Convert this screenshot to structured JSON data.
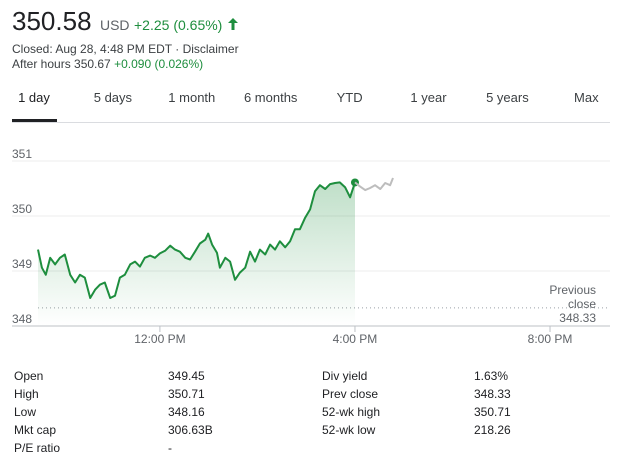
{
  "header": {
    "price": "350.58",
    "currency": "USD",
    "change": "+2.25 (0.65%)",
    "status": "Closed: Aug 28, 4:48 PM EDT",
    "separator": "·",
    "disclaimer": "Disclaimer",
    "after_hours": "After hours 350.67",
    "after_hours_change": "+0.090 (0.026%)"
  },
  "tabs": [
    "1 day",
    "5 days",
    "1 month",
    "6 months",
    "YTD",
    "1 year",
    "5 years",
    "Max"
  ],
  "selected_tab": 0,
  "chart_data": {
    "type": "line",
    "xlim": [
      9.5,
      21.23
    ],
    "ylim": [
      348,
      351.2
    ],
    "xticks": [
      {
        "value": 12,
        "label": "12:00 PM"
      },
      {
        "value": 16,
        "label": "4:00 PM"
      },
      {
        "value": 20,
        "label": "8:00 PM"
      }
    ],
    "yticks": [
      348,
      349,
      350,
      351
    ],
    "grid": true,
    "series": [
      {
        "color": "#1e8e3e",
        "area": true,
        "end_marker": true,
        "x": [
          9.5,
          9.58,
          9.66,
          9.75,
          9.85,
          9.95,
          10.05,
          10.16,
          10.26,
          10.36,
          10.46,
          10.57,
          10.67,
          10.77,
          10.87,
          10.98,
          11.08,
          11.18,
          11.28,
          11.39,
          11.49,
          11.59,
          11.69,
          11.8,
          11.9,
          12.0,
          12.11,
          12.21,
          12.31,
          12.41,
          12.52,
          12.62,
          12.72,
          12.82,
          12.93,
          12.99,
          13.07,
          13.17,
          13.23,
          13.34,
          13.44,
          13.54,
          13.64,
          13.75,
          13.85,
          13.95,
          14.05,
          14.16,
          14.26,
          14.36,
          14.46,
          14.57,
          14.67,
          14.77,
          14.87,
          14.98,
          15.08,
          15.18,
          15.28,
          15.39,
          15.49,
          15.59,
          15.69,
          15.8,
          15.9,
          16.0
        ],
        "values": [
          349.39,
          349.06,
          348.93,
          349.24,
          349.12,
          349.24,
          349.3,
          348.93,
          348.79,
          348.93,
          348.88,
          348.51,
          348.66,
          348.75,
          348.79,
          348.51,
          348.55,
          348.88,
          348.93,
          349.12,
          349.17,
          349.08,
          349.24,
          349.28,
          349.24,
          349.32,
          349.37,
          349.46,
          349.39,
          349.35,
          349.24,
          349.21,
          349.35,
          349.5,
          349.57,
          349.68,
          349.48,
          349.33,
          349.06,
          349.24,
          349.17,
          348.84,
          348.97,
          349.06,
          349.35,
          349.17,
          349.39,
          349.3,
          349.48,
          349.39,
          349.54,
          349.43,
          349.54,
          349.76,
          349.76,
          349.97,
          350.12,
          350.45,
          350.56,
          350.49,
          350.58,
          350.6,
          350.61,
          350.52,
          350.34,
          350.61
        ]
      },
      {
        "color": "#bdbdbd",
        "area": false,
        "end_marker": false,
        "x": [
          16.0,
          16.1,
          16.21,
          16.31,
          16.41,
          16.52,
          16.62,
          16.72,
          16.78
        ],
        "values": [
          350.61,
          350.54,
          350.47,
          350.51,
          350.56,
          350.49,
          350.6,
          350.56,
          350.69
        ]
      }
    ],
    "previous_close": {
      "label": "Previous close",
      "value": 348.33
    }
  },
  "stats": {
    "left": [
      [
        "Open",
        "349.45"
      ],
      [
        "High",
        "350.71"
      ],
      [
        "Low",
        "348.16"
      ],
      [
        "Mkt cap",
        "306.63B"
      ],
      [
        "P/E ratio",
        "-"
      ]
    ],
    "right": [
      [
        "Div yield",
        "1.63%"
      ],
      [
        "Prev close",
        "348.33"
      ],
      [
        "52-wk high",
        "350.71"
      ],
      [
        "52-wk low",
        "218.26"
      ]
    ]
  }
}
